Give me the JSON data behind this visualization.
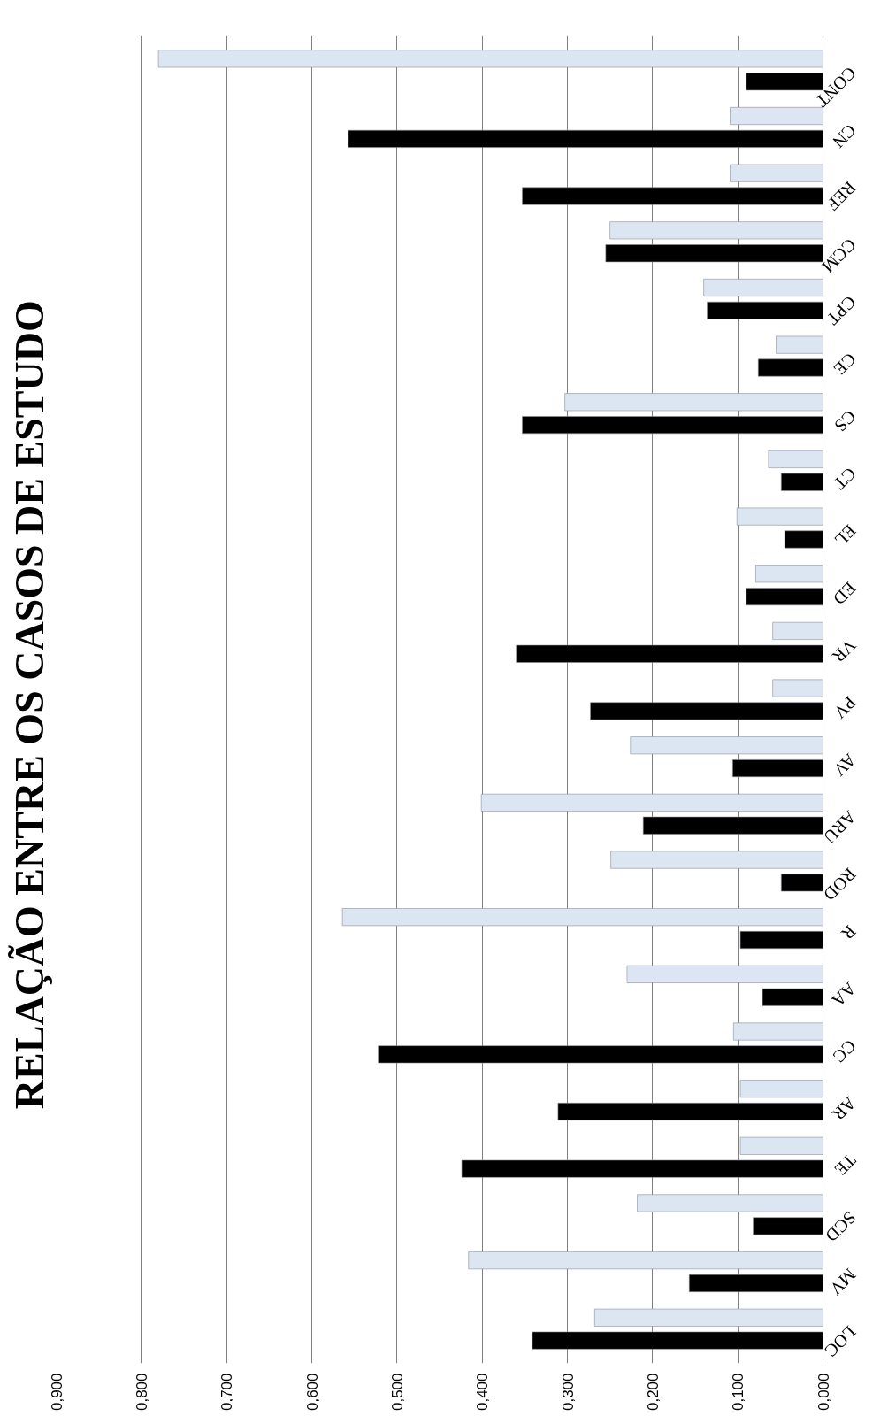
{
  "chart_data": {
    "type": "bar",
    "orientation": "horizontal",
    "title": "RELAÇÃO  ENTRE OS CASOS DE ESTUDO",
    "categories": [
      "CONT",
      "CN",
      "REF",
      "CCM",
      "CPT",
      "CE",
      "CS",
      "CT",
      "EL",
      "ED",
      "VR",
      "PV",
      "AV",
      "ARU",
      "ROD",
      "R",
      "AA",
      "CC",
      "AR",
      "TE",
      "SCD",
      "MV",
      "LOC"
    ],
    "series": [
      {
        "color": "#000000",
        "values": [
          0.09,
          0.557,
          0.353,
          0.255,
          0.136,
          0.076,
          0.353,
          0.049,
          0.045,
          0.09,
          0.36,
          0.273,
          0.106,
          0.211,
          0.049,
          0.097,
          0.071,
          0.522,
          0.311,
          0.424,
          0.082,
          0.157,
          0.341
        ]
      },
      {
        "color": "#dce6f2",
        "values": [
          0.78,
          0.109,
          0.109,
          0.25,
          0.14,
          0.055,
          0.303,
          0.064,
          0.101,
          0.079,
          0.059,
          0.059,
          0.226,
          0.401,
          0.249,
          0.564,
          0.23,
          0.105,
          0.097,
          0.097,
          0.218,
          0.416,
          0.268
        ]
      }
    ],
    "xlim": [
      0.9,
      0
    ],
    "xticks": [
      {
        "value": 0.9,
        "label": "0,900"
      },
      {
        "value": 0.8,
        "label": "0,800"
      },
      {
        "value": 0.7,
        "label": "0,700"
      },
      {
        "value": 0.6,
        "label": "0,600"
      },
      {
        "value": 0.5,
        "label": "0,500"
      },
      {
        "value": 0.4,
        "label": "0,400"
      },
      {
        "value": 0.3,
        "label": "0,300"
      },
      {
        "value": 0.2,
        "label": "0,200"
      },
      {
        "value": 0.1,
        "label": "0,100"
      },
      {
        "value": 0,
        "label": "0,000"
      }
    ],
    "grid": "x"
  }
}
